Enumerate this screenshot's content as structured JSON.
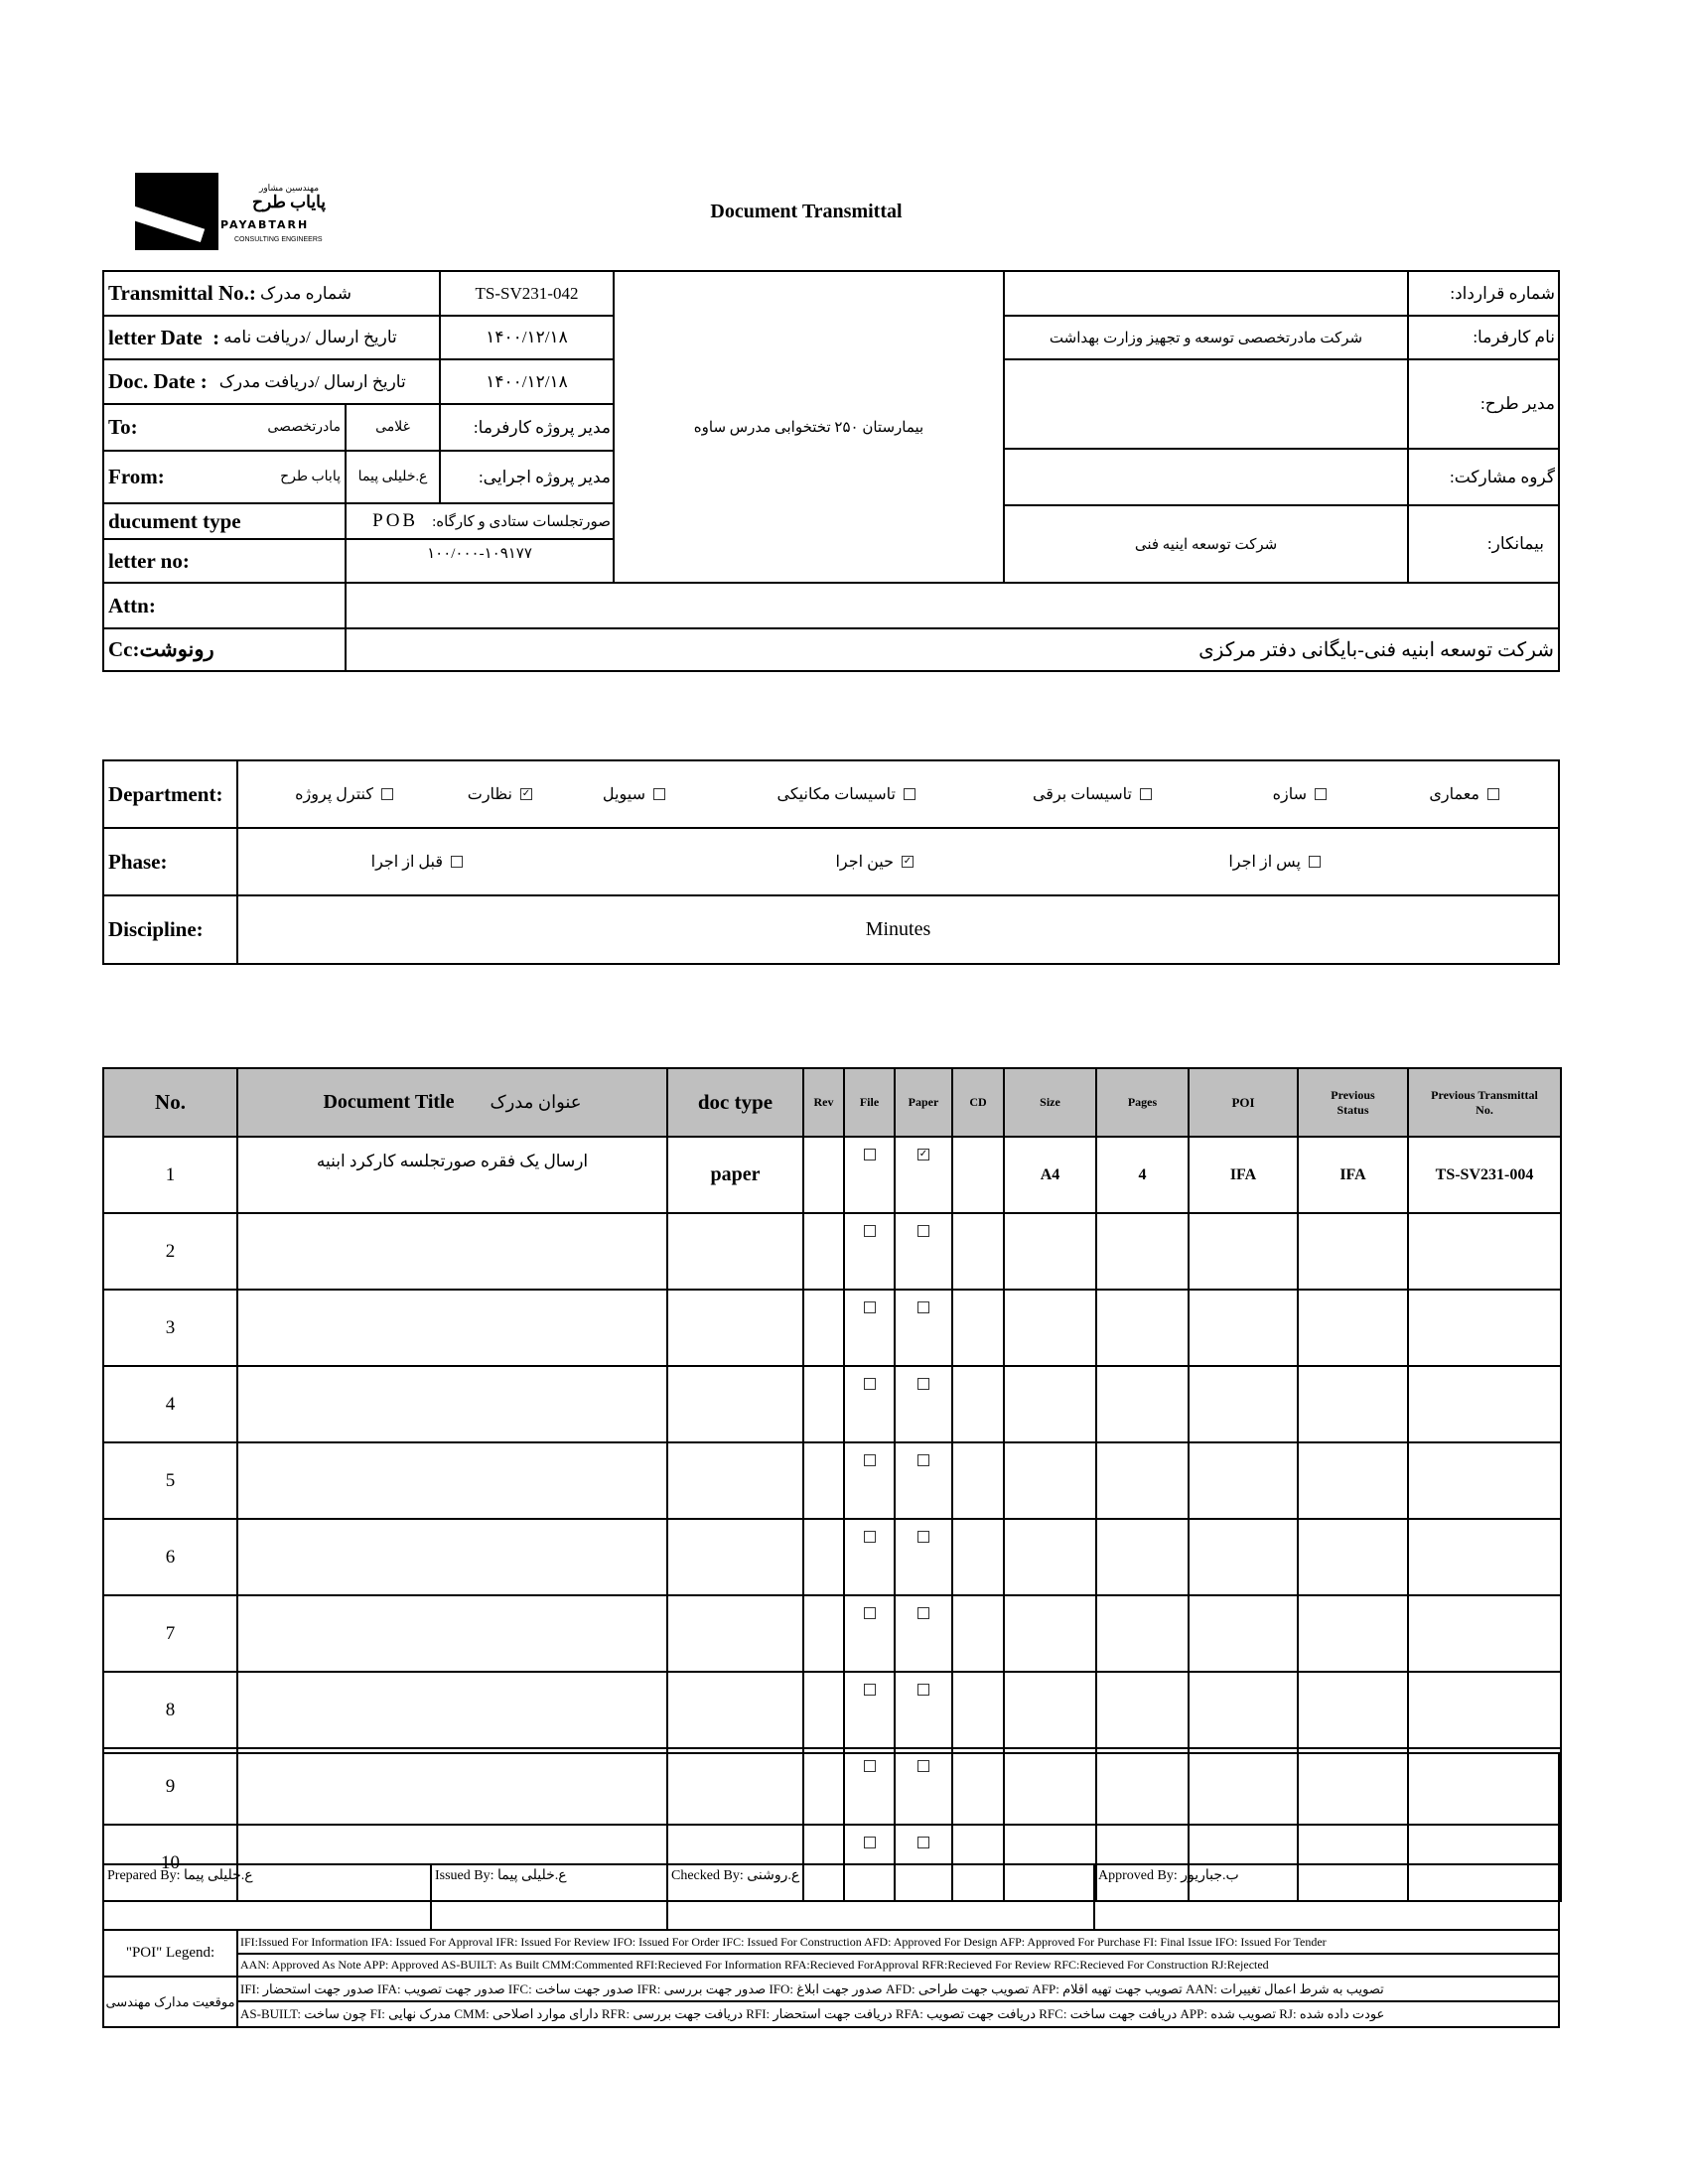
{
  "logo": {
    "company_fa": "مهندسین مشاور",
    "name_fa": "پایاب طرح",
    "name_en": "PAYABTARH",
    "subtitle": "CONSULTING ENGINEERS"
  },
  "title": "Document Transmittal",
  "header": {
    "transmittal_label": "Transmittal No.:",
    "transmittal_label_fa": "شماره مدرک",
    "transmittal_value": "TS-SV231-042",
    "letter_date_label": "letter Date  :",
    "letter_date_label_fa": "تاریخ ارسال /دریافت نامه",
    "letter_date_value": "۱۴۰۰/۱۲/۱۸",
    "doc_date_label": "Doc. Date :",
    "doc_date_label_fa": "تاریخ ارسال /دریافت مدرک",
    "doc_date_value": "۱۴۰۰/۱۲/۱۸",
    "to_label": "To:",
    "to_org": "مادرتخصصی",
    "to_person": "غلامی",
    "to_role": "مدیر پروژه کارفرما:",
    "from_label": "From:",
    "from_org": "پاباب طرح",
    "from_person": "ع.خلیلی پیما",
    "from_role": "مدیر پروژه اجرایی:",
    "doc_type_label": "ducument type",
    "doc_type_code": "POB",
    "doc_type_fa": "صورتجلسات ستادی و کارگاه:",
    "letter_no_label": "letter no:",
    "letter_no_value": "۱۰۰/۰۰۰-۱۰۹۱۷۷",
    "project": "بیمارستان ۲۵۰ تختخوابی مدرس ساوه",
    "contract_label": "شماره قرارداد:",
    "contract_value": "",
    "employer_label": "نام کارفرما:",
    "employer_value": "شرکت مادرتخصصی توسعه و تجهیز وزارت بهداشت",
    "pm_label": "مدیر طرح:",
    "pm_value": "",
    "partner_label": "گروه مشارکت:",
    "partner_value": "",
    "contractor_label": "بیمانکار:",
    "contractor_value": "شرکت توسعه اینیه فنی",
    "attn_label": "Attn:",
    "attn_value": "",
    "cc_label": "Cc:رونوشت",
    "cc_value": "شرکت توسعه ابنیه فنی-بایگانی دفتر مرکزی"
  },
  "department": {
    "label": "Department:",
    "items": [
      {
        "label": "معماری",
        "checked": false
      },
      {
        "label": "سازه",
        "checked": false
      },
      {
        "label": "تاسیسات برقی",
        "checked": false
      },
      {
        "label": "تاسیسات مکانیکی",
        "checked": false
      },
      {
        "label": "سیویل",
        "checked": false
      },
      {
        "label": "نظارت",
        "checked": true
      },
      {
        "label": "کنترل پروژه",
        "checked": false
      }
    ]
  },
  "phase": {
    "label": "Phase:",
    "items": [
      {
        "label": "پس از اجرا",
        "checked": false
      },
      {
        "label": "حین اجرا",
        "checked": true
      },
      {
        "label": "قبل از اجرا",
        "checked": false
      }
    ]
  },
  "discipline": {
    "label": "Discipline:",
    "value": "Minutes"
  },
  "table": {
    "headers": {
      "no": "No.",
      "title": "Document Title",
      "title_fa": "عنوان مدرک",
      "doc_type": "doc type",
      "rev": "Rev",
      "file": "File",
      "paper": "Paper",
      "cd": "CD",
      "size": "Size",
      "pages": "Pages",
      "poi": "POI",
      "prev_status": "Previous Status",
      "prev_transmittal": "Previous Transmittal No."
    },
    "rows": [
      {
        "no": "1",
        "title": "ارسال یک فقره صورتجلسه کارکرد ابنیه",
        "doc_type": "paper",
        "rev": "",
        "file": false,
        "paper": true,
        "cd": "",
        "size": "A4",
        "pages": "4",
        "poi": "IFA",
        "prev_status": "IFA",
        "prev_transmittal": "TS-SV231-004"
      },
      {
        "no": "2",
        "title": "",
        "doc_type": "",
        "rev": "",
        "file": false,
        "paper": false,
        "cd": "",
        "size": "",
        "pages": "",
        "poi": "",
        "prev_status": "",
        "prev_transmittal": ""
      },
      {
        "no": "3",
        "title": "",
        "doc_type": "",
        "rev": "",
        "file": false,
        "paper": false,
        "cd": "",
        "size": "",
        "pages": "",
        "poi": "",
        "prev_status": "",
        "prev_transmittal": ""
      },
      {
        "no": "4",
        "title": "",
        "doc_type": "",
        "rev": "",
        "file": false,
        "paper": false,
        "cd": "",
        "size": "",
        "pages": "",
        "poi": "",
        "prev_status": "",
        "prev_transmittal": ""
      },
      {
        "no": "5",
        "title": "",
        "doc_type": "",
        "rev": "",
        "file": false,
        "paper": false,
        "cd": "",
        "size": "",
        "pages": "",
        "poi": "",
        "prev_status": "",
        "prev_transmittal": ""
      },
      {
        "no": "6",
        "title": "",
        "doc_type": "",
        "rev": "",
        "file": false,
        "paper": false,
        "cd": "",
        "size": "",
        "pages": "",
        "poi": "",
        "prev_status": "",
        "prev_transmittal": ""
      },
      {
        "no": "7",
        "title": "",
        "doc_type": "",
        "rev": "",
        "file": false,
        "paper": false,
        "cd": "",
        "size": "",
        "pages": "",
        "poi": "",
        "prev_status": "",
        "prev_transmittal": ""
      },
      {
        "no": "8",
        "title": "",
        "doc_type": "",
        "rev": "",
        "file": false,
        "paper": false,
        "cd": "",
        "size": "",
        "pages": "",
        "poi": "",
        "prev_status": "",
        "prev_transmittal": ""
      },
      {
        "no": "9",
        "title": "",
        "doc_type": "",
        "rev": "",
        "file": false,
        "paper": false,
        "cd": "",
        "size": "",
        "pages": "",
        "poi": "",
        "prev_status": "",
        "prev_transmittal": ""
      },
      {
        "no": "10",
        "title": "",
        "doc_type": "",
        "rev": "",
        "file": false,
        "paper": false,
        "cd": "",
        "size": "",
        "pages": "",
        "poi": "",
        "prev_status": "",
        "prev_transmittal": ""
      }
    ]
  },
  "signatures": {
    "prepared": "Prepared By: ع.خلیلی پیما",
    "issued": "Issued By: ع.خلیلی پیما",
    "checked": "Checked By: ع.روشنی",
    "approved": "Approved By: ب.جباریور"
  },
  "legend": {
    "poi_label": "\"POI\" Legend:",
    "poi_line1": "IFI:Issued For Information  IFA: Issued For Approval  IFR: Issued For Review   IFO: Issued For Order  IFC: Issued For Construction AFD: Approved For Design AFP: Approved For Purchase  FI: Final Issue  IFO: Issued For Tender",
    "poi_line2": "AAN: Approved As Note  APP: Approved  AS-BUILT: As Built CMM:Commented  RFI:Recieved For Information   RFA:Recieved ForApproval   RFR:Recieved For Review  RFC:Recieved For Construction  RJ:Rejected",
    "status_label": "موقعیت مدارک مهندسی",
    "status_line1": "IFI: صدور جهت استحضار   IFA: صدور جهت تصویب   IFC: صدور جهت ساخت   IFR: صدور جهت بررسی   IFO: صدور جهت ابلاغ   AFD: تصویب جهت طراحی   AFP: تصویب جهت تهیه اقلام   AAN: تصویب به شرط اعمال تغییرات",
    "status_line2": "AS-BUILT: چون ساخت   FI: مدرک نهایی   CMM: دارای موارد اصلاحی   RFR: دریافت جهت بررسی   RFI: دریافت جهت استحضار   RFA: دریافت جهت تصویب   RFC: دریافت جهت ساخت   APP: تصویب شده   RJ: عودت داده شده"
  }
}
